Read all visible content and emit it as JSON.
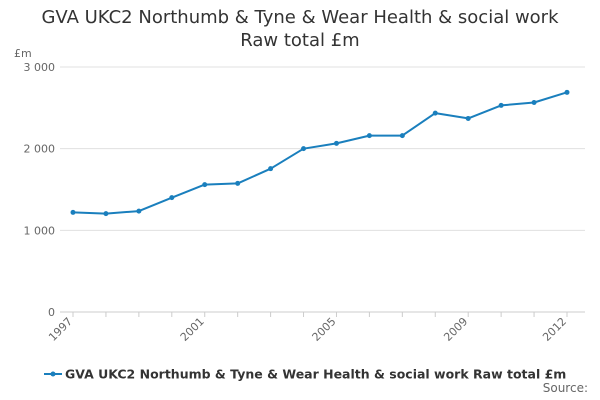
{
  "title_line1": "GVA UKC2 Northumb & Tyne & Wear Health & social work",
  "title_line2": "Raw total £m",
  "source_label": "Source:",
  "colors": {
    "series": "#1a7fbd",
    "grid": "#e0e0e0",
    "axis_text": "#666666"
  },
  "chart_data": {
    "type": "line",
    "ylabel": "£m",
    "ylim": [
      0,
      3000
    ],
    "yticks": [
      0,
      1000,
      2000,
      3000
    ],
    "ytick_labels": [
      "0",
      "1 000",
      "2 000",
      "3 000"
    ],
    "xlim": [
      1997,
      2012
    ],
    "xticks": [
      1997,
      2001,
      2005,
      2009,
      2012
    ],
    "xtick_labels": [
      "1997",
      "2001",
      "2005",
      "2009",
      "2012"
    ],
    "grid": true,
    "legend_position": "bottom",
    "series": [
      {
        "name": "GVA UKC2 Northumb & Tyne & Wear Health & social work Raw total £m",
        "x": [
          1997,
          1998,
          1999,
          2000,
          2001,
          2002,
          2003,
          2004,
          2005,
          2006,
          2007,
          2008,
          2009,
          2010,
          2011,
          2012
        ],
        "values": [
          1220,
          1205,
          1235,
          1400,
          1560,
          1575,
          1755,
          2000,
          2065,
          2160,
          2160,
          2435,
          2370,
          2530,
          2565,
          2690
        ]
      }
    ]
  }
}
